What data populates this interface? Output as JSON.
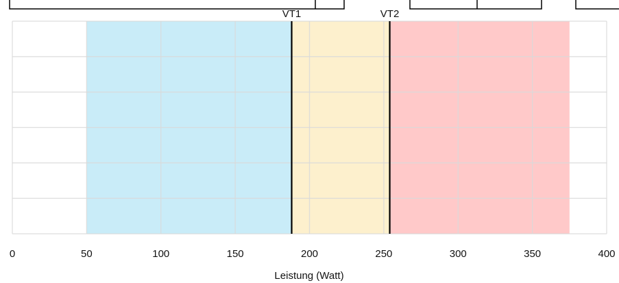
{
  "chart_data": {
    "type": "area",
    "title": "",
    "xlabel": "Leistung (Watt)",
    "ylabel": "",
    "xlim": [
      0,
      400
    ],
    "x_ticks": [
      "0",
      "50",
      "100",
      "150",
      "200",
      "250",
      "300",
      "350",
      "400"
    ],
    "grid": true,
    "zones": [
      {
        "name": "zone-1",
        "from": 50,
        "to": 188,
        "color": "#c9ecf8"
      },
      {
        "name": "zone-2",
        "from": 188,
        "to": 254,
        "color": "#fdf0cd"
      },
      {
        "name": "zone-3",
        "from": 254,
        "to": 375,
        "color": "#ffc9c9"
      }
    ],
    "thresholds": [
      {
        "label": "VT1",
        "x": 188
      },
      {
        "label": "VT2",
        "x": 254
      }
    ]
  },
  "colors": {
    "grid": "#d9d9d9",
    "threshold_line": "#000000"
  }
}
